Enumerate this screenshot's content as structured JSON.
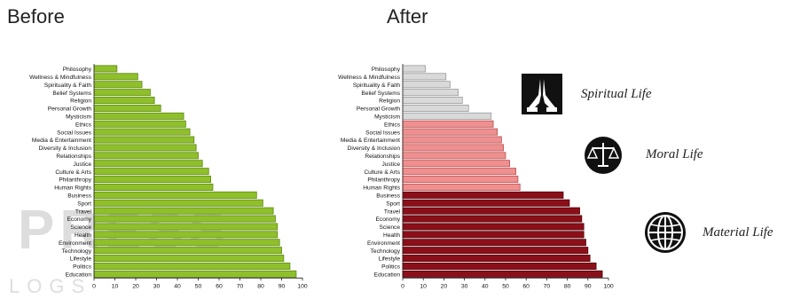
{
  "headings": {
    "before": "Before",
    "after": "After"
  },
  "chart_data": [
    {
      "id": "before",
      "type": "bar",
      "orientation": "horizontal",
      "title": "Before",
      "categories": [
        "Philosophy",
        "Wellness & Mindfulness",
        "Spirituality & Faith",
        "Belief Systems",
        "Religion",
        "Personal Growth",
        "Mysticism",
        "Ethics",
        "Social Issues",
        "Media & Entertainment",
        "Diversity & Inclusion",
        "Relationships",
        "Justice",
        "Culture & Arts",
        "Philanthropy",
        "Human Rights",
        "Business",
        "Sport",
        "Travel",
        "Economy",
        "Science",
        "Health",
        "Environment",
        "Technology",
        "Lifestyle",
        "Politics",
        "Education"
      ],
      "values": [
        11,
        21,
        23,
        27,
        29,
        32,
        43,
        44,
        46,
        48,
        49,
        50,
        52,
        55,
        56,
        57,
        78,
        81,
        86,
        87,
        88,
        88,
        89,
        90,
        91,
        94,
        97
      ],
      "xlim": [
        0,
        100
      ],
      "xticks": [
        0,
        10,
        20,
        30,
        40,
        50,
        60,
        70,
        80,
        90,
        100
      ],
      "bar_color": "#8fbf2a",
      "bar_edge_color": "#5e8a12",
      "grid": false
    },
    {
      "id": "after",
      "type": "bar",
      "orientation": "horizontal",
      "title": "After",
      "categories": [
        "Philosophy",
        "Wellness & Mindfulness",
        "Spirituality & Faith",
        "Belief Systems",
        "Religion",
        "Personal Growth",
        "Mysticism",
        "Ethics",
        "Social Issues",
        "Media & Entertainment",
        "Diversity & Inclusion",
        "Relationships",
        "Justice",
        "Culture & Arts",
        "Philanthropy",
        "Human Rights",
        "Business",
        "Sport",
        "Travel",
        "Economy",
        "Science",
        "Health",
        "Environment",
        "Technology",
        "Lifestyle",
        "Politics",
        "Education"
      ],
      "values": [
        11,
        21,
        23,
        27,
        29,
        32,
        43,
        44,
        46,
        48,
        49,
        50,
        52,
        55,
        56,
        57,
        78,
        81,
        86,
        87,
        88,
        88,
        89,
        90,
        91,
        94,
        97
      ],
      "xlim": [
        0,
        100
      ],
      "xticks": [
        0,
        10,
        20,
        30,
        40,
        50,
        60,
        70,
        80,
        90,
        100
      ],
      "groups": [
        {
          "label": "Spiritual Life",
          "icon": "praying-hands-icon",
          "from": 0,
          "to": 6,
          "color": "#d9d9d9",
          "edge": "#9a9a9a"
        },
        {
          "label": "Moral Life",
          "icon": "scales-of-justice-icon",
          "from": 7,
          "to": 15,
          "color": "#ef8f8f",
          "edge": "#b85050"
        },
        {
          "label": "Material Life",
          "icon": "globe-icon",
          "from": 16,
          "to": 26,
          "color": "#8b0f19",
          "edge": "#4f0008"
        }
      ],
      "grid": false
    }
  ],
  "watermark_text": "PRESS",
  "watermark_subtext": "LOGS"
}
